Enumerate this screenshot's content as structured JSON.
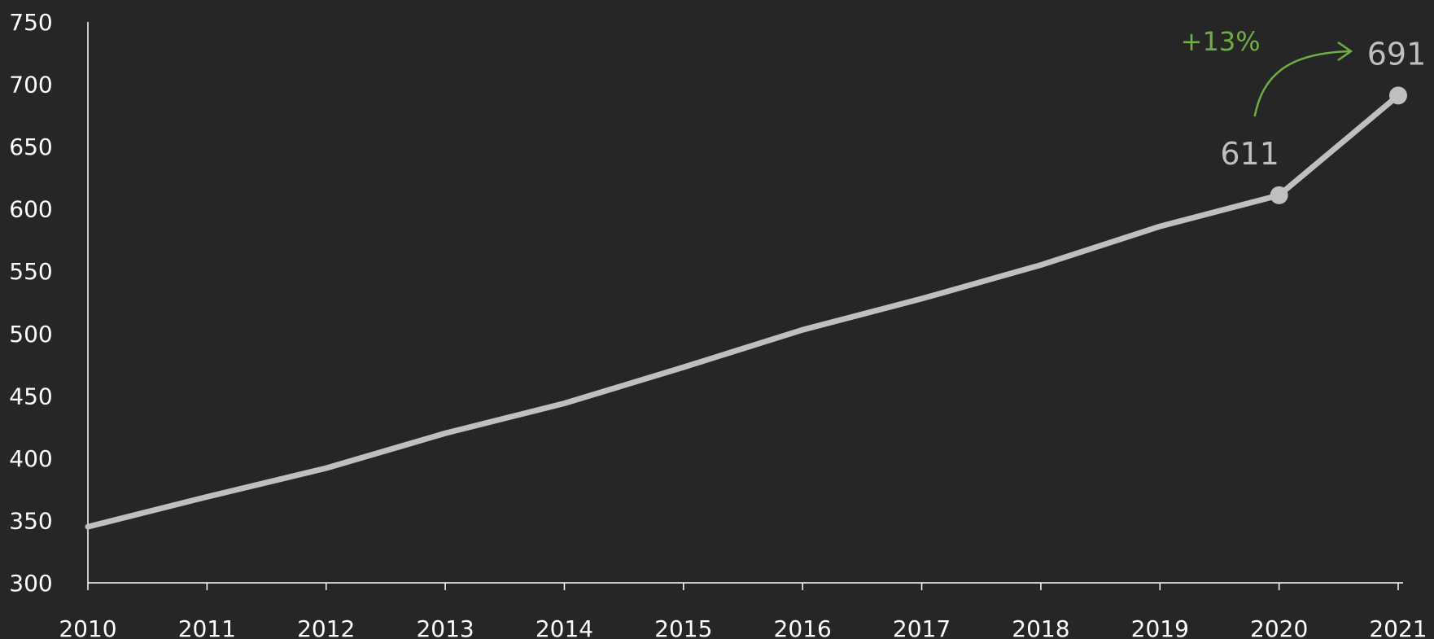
{
  "chart_data": {
    "type": "line",
    "x": [
      2010,
      2011,
      2012,
      2013,
      2014,
      2015,
      2016,
      2017,
      2018,
      2019,
      2020,
      2021
    ],
    "x_tick_labels": [
      "2010",
      "2011",
      "2012",
      "2013",
      "2014",
      "2015",
      "2016",
      "2017",
      "2018",
      "2019",
      "2020",
      "2021"
    ],
    "series": [
      {
        "values": [
          345,
          369,
          392,
          420,
          444,
          473,
          503,
          528,
          555,
          586,
          611,
          691
        ]
      }
    ],
    "title": "",
    "xlabel": "",
    "ylabel": "",
    "ylim": [
      300,
      750
    ],
    "y_ticks": [
      300,
      350,
      400,
      450,
      500,
      550,
      600,
      650,
      700,
      750
    ],
    "y_tick_labels": [
      "300",
      "350",
      "400",
      "450",
      "500",
      "550",
      "600",
      "650",
      "700",
      "750"
    ],
    "grid": false,
    "legend": "none",
    "highlight_labels": [
      {
        "x": 2020,
        "text": "611"
      },
      {
        "x": 2021,
        "text": "691"
      }
    ],
    "annotation": {
      "text": "+13%",
      "from_x": 2020,
      "to_x": 2021,
      "color": "#70ad47"
    },
    "colors": {
      "background": "#262626",
      "line": "#bfbfbf",
      "axis": "#ffffff",
      "label": "#bfbfbf",
      "annotation": "#70ad47"
    }
  }
}
